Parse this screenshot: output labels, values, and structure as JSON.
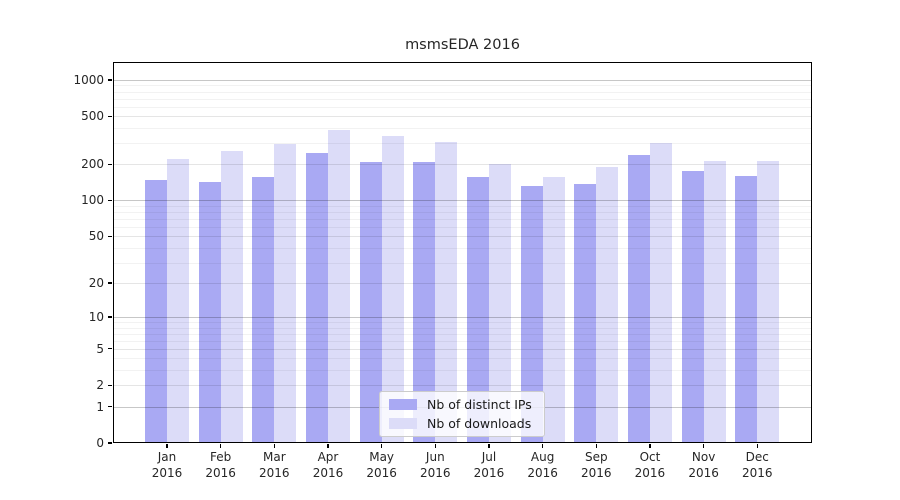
{
  "chart_data": {
    "type": "bar",
    "title": "msmsEDA 2016",
    "categories": [
      "Jan",
      "Feb",
      "Mar",
      "Apr",
      "May",
      "Jun",
      "Jul",
      "Aug",
      "Sep",
      "Oct",
      "Nov",
      "Dec"
    ],
    "category_year": "2016",
    "series": [
      {
        "name": "Nb of distinct IPs",
        "color": "#a9a9f3",
        "values": [
          147,
          142,
          158,
          248,
          211,
          211,
          157,
          131,
          137,
          240,
          177,
          160
        ]
      },
      {
        "name": "Nb of downloads",
        "color": "#dcdcf8",
        "values": [
          220,
          258,
          295,
          385,
          345,
          305,
          200,
          158,
          190,
          300,
          215,
          212
        ]
      }
    ],
    "y_scale": "log1p",
    "ylim": [
      0,
      1410
    ],
    "y_ticks": [
      0,
      1,
      2,
      5,
      10,
      20,
      50,
      100,
      200,
      500,
      1000
    ],
    "y_minor_ticks": [
      3,
      4,
      6,
      7,
      8,
      9,
      30,
      40,
      60,
      70,
      80,
      90,
      300,
      400,
      600,
      700,
      800,
      900
    ],
    "grid": "both",
    "legend_position": "lower-center-inside",
    "text_color": "#262626"
  }
}
